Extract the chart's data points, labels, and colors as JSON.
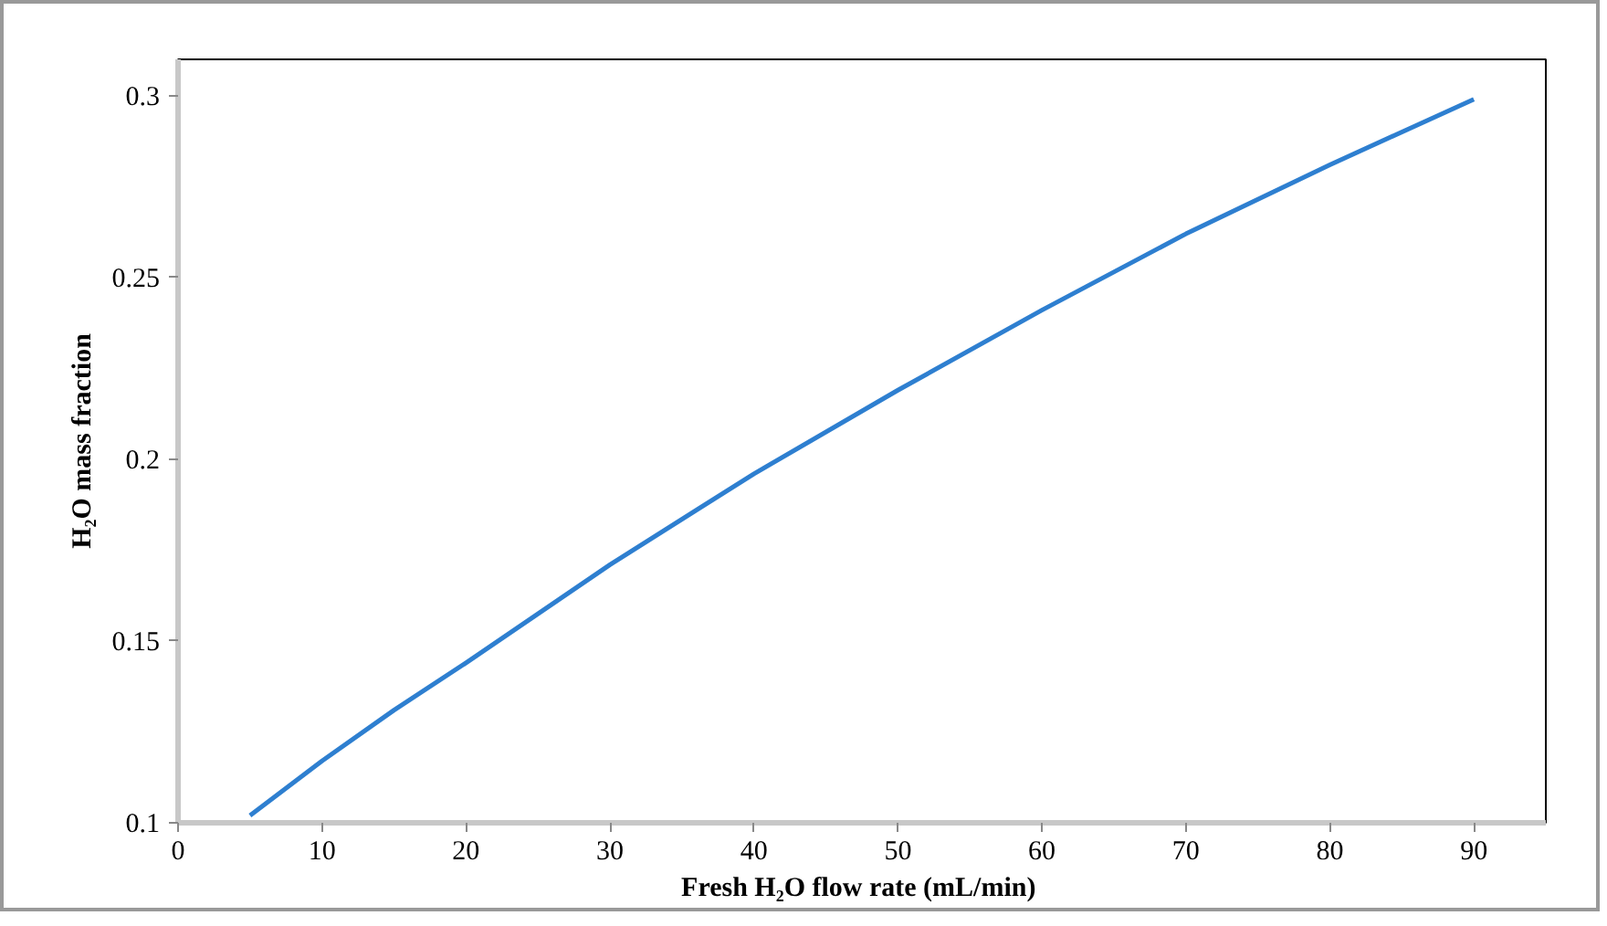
{
  "chart_data": {
    "type": "line",
    "xlabel": "Fresh H₂O flow rate  (mL/min)",
    "ylabel": "H₂O mass fraction",
    "x": [
      5,
      10,
      15,
      20,
      30,
      40,
      50,
      60,
      70,
      80,
      90
    ],
    "series": [
      {
        "color": "#2e7fd0",
        "values": [
          0.102,
          0.117,
          0.131,
          0.144,
          0.171,
          0.196,
          0.219,
          0.241,
          0.262,
          0.281,
          0.299
        ]
      }
    ],
    "xlim": [
      0,
      95
    ],
    "ylim": [
      0.1,
      0.31
    ],
    "xticks": [
      0,
      10,
      20,
      30,
      40,
      50,
      60,
      70,
      80,
      90
    ],
    "yticks": [
      0.1,
      0.15,
      0.2,
      0.25,
      0.3
    ],
    "grid": false,
    "marker": "none",
    "line_style": "solid"
  }
}
